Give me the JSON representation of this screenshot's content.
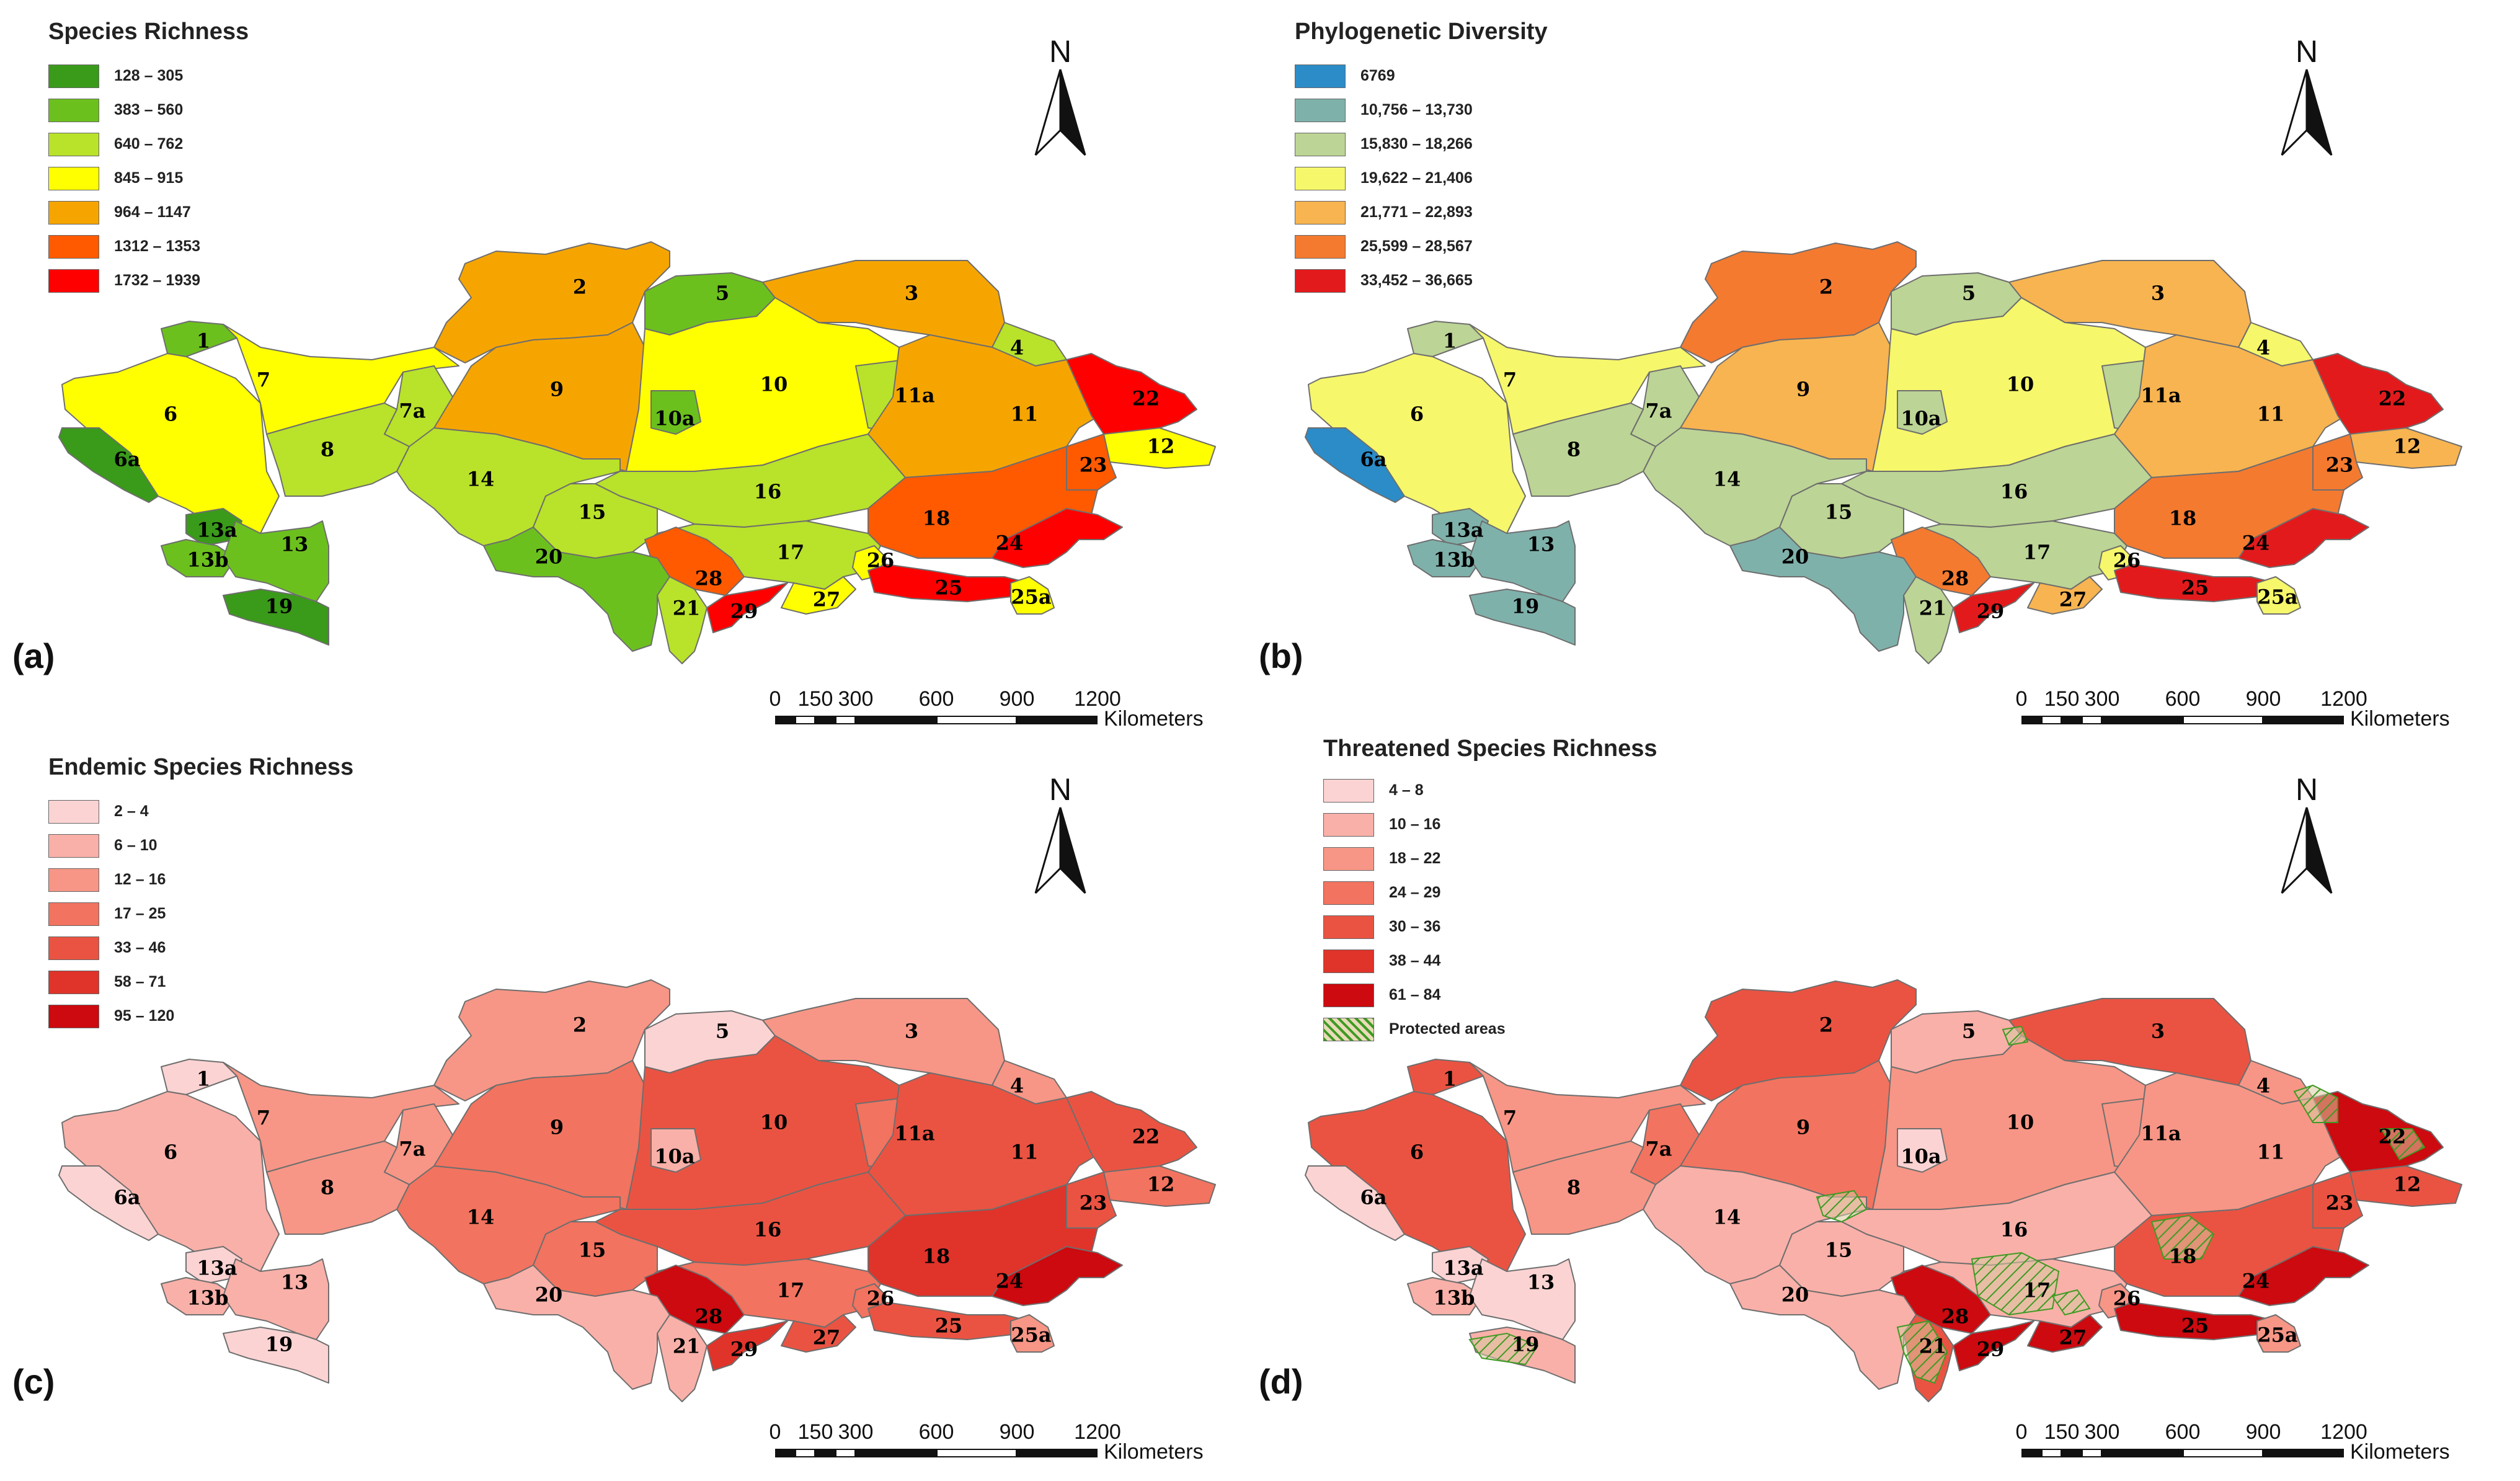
{
  "panels": [
    {
      "letter": "(a)",
      "legend_title": "Species Richness",
      "legend": [
        {
          "label": "128 – 305",
          "color": "#3a9a1a"
        },
        {
          "label": "383 – 560",
          "color": "#6cc01e"
        },
        {
          "label": "640 – 762",
          "color": "#b9e22a"
        },
        {
          "label": "845 – 915",
          "color": "#ffff00"
        },
        {
          "label": "964 – 1147",
          "color": "#f6a500"
        },
        {
          "label": "1312 – 1353",
          "color": "#ff5a00"
        },
        {
          "label": "1732 – 1939",
          "color": "#ff0000"
        }
      ],
      "region_classes": {
        "1": 2,
        "2": 5,
        "3": 5,
        "4": 3,
        "5": 2,
        "6": 4,
        "6a": 1,
        "7": 4,
        "7a": 3,
        "8": 3,
        "9": 5,
        "10": 4,
        "10a": 2,
        "11": 5,
        "11a": 3,
        "12": 4,
        "13": 2,
        "13a": 1,
        "13b": 2,
        "14": 3,
        "15": 3,
        "16": 3,
        "17": 3,
        "18": 6,
        "19": 1,
        "20": 2,
        "21": 3,
        "22": 7,
        "23": 6,
        "24": 7,
        "25": 7,
        "25a": 4,
        "26": 4,
        "27": 4,
        "28": 6,
        "29": 7
      }
    },
    {
      "letter": "(b)",
      "legend_title": "Phylogenetic Diversity",
      "legend": [
        {
          "label": "6769",
          "color": "#2b8cc8"
        },
        {
          "label": "10,756 – 13,730",
          "color": "#7fb1ab"
        },
        {
          "label": "15,830 – 18,266",
          "color": "#bcd495"
        },
        {
          "label": "19,622 – 21,406",
          "color": "#f6f76a"
        },
        {
          "label": "21,771 – 22,893",
          "color": "#f8b450"
        },
        {
          "label": "25,599 – 28,567",
          "color": "#f47a30"
        },
        {
          "label": "33,452 – 36,665",
          "color": "#e31a1c"
        }
      ],
      "region_classes": {
        "1": 3,
        "2": 6,
        "3": 5,
        "4": 4,
        "5": 3,
        "6": 4,
        "6a": 1,
        "7": 4,
        "7a": 3,
        "8": 3,
        "9": 5,
        "10": 4,
        "10a": 3,
        "11": 5,
        "11a": 3,
        "12": 5,
        "13": 2,
        "13a": 2,
        "13b": 2,
        "14": 3,
        "15": 3,
        "16": 3,
        "17": 3,
        "18": 6,
        "19": 2,
        "20": 2,
        "21": 3,
        "22": 7,
        "23": 6,
        "24": 7,
        "25": 7,
        "25a": 4,
        "26": 4,
        "27": 5,
        "28": 6,
        "29": 7
      }
    },
    {
      "letter": "(c)",
      "legend_title": "Endemic Species Richness",
      "legend": [
        {
          "label": "2 – 4",
          "color": "#fcd3d3"
        },
        {
          "label": "6 – 10",
          "color": "#f9b0a8"
        },
        {
          "label": "12 – 16",
          "color": "#f79686"
        },
        {
          "label": "17 – 25",
          "color": "#f2735f"
        },
        {
          "label": "33 – 46",
          "color": "#ea5342"
        },
        {
          "label": "58 – 71",
          "color": "#e0332a"
        },
        {
          "label": "95 – 120",
          "color": "#cc0a0f"
        }
      ],
      "region_classes": {
        "1": 1,
        "2": 3,
        "3": 3,
        "4": 3,
        "5": 1,
        "6": 2,
        "6a": 1,
        "7": 3,
        "7a": 3,
        "8": 3,
        "9": 4,
        "10": 5,
        "10a": 2,
        "11": 5,
        "11a": 4,
        "12": 4,
        "13": 2,
        "13a": 1,
        "13b": 2,
        "14": 4,
        "15": 4,
        "16": 5,
        "17": 4,
        "18": 6,
        "19": 1,
        "20": 2,
        "21": 2,
        "22": 5,
        "23": 5,
        "24": 7,
        "25": 5,
        "25a": 3,
        "26": 4,
        "27": 5,
        "28": 7,
        "29": 6
      }
    },
    {
      "letter": "(d)",
      "legend_title": "Threatened Species Richness",
      "legend": [
        {
          "label": "4 – 8",
          "color": "#fcd3d3"
        },
        {
          "label": "10 – 16",
          "color": "#f9b0a8"
        },
        {
          "label": "18 – 22",
          "color": "#f79686"
        },
        {
          "label": "24 – 29",
          "color": "#f2735f"
        },
        {
          "label": "30 – 36",
          "color": "#ea5342"
        },
        {
          "label": "38 – 44",
          "color": "#e0332a"
        },
        {
          "label": "61 – 84",
          "color": "#cc0a0f"
        },
        {
          "label": "Protected areas",
          "color": "hatch"
        }
      ],
      "region_classes": {
        "1": 5,
        "2": 5,
        "3": 5,
        "4": 3,
        "5": 2,
        "6": 5,
        "6a": 1,
        "7": 3,
        "7a": 4,
        "8": 3,
        "9": 4,
        "10": 3,
        "10a": 1,
        "11": 3,
        "11a": 3,
        "12": 5,
        "13": 1,
        "13a": 1,
        "13b": 2,
        "14": 2,
        "15": 2,
        "16": 2,
        "17": 2,
        "18": 5,
        "19": 2,
        "20": 2,
        "21": 5,
        "22": 7,
        "23": 5,
        "24": 7,
        "25": 7,
        "25a": 3,
        "26": 3,
        "27": 7,
        "28": 7,
        "29": 7
      }
    }
  ],
  "north_label": "N",
  "scale": {
    "ticks": [
      "0",
      "150",
      "300",
      "600",
      "900",
      "1200"
    ],
    "unit": "Kilometers"
  },
  "region_labels": [
    "1",
    "2",
    "3",
    "4",
    "5",
    "6",
    "6a",
    "7",
    "7a",
    "8",
    "9",
    "10",
    "10a",
    "11",
    "11a",
    "12",
    "13",
    "13a",
    "13b",
    "14",
    "15",
    "16",
    "17",
    "18",
    "19",
    "20",
    "21",
    "22",
    "23",
    "24",
    "25",
    "25a",
    "26",
    "27",
    "28",
    "29"
  ]
}
